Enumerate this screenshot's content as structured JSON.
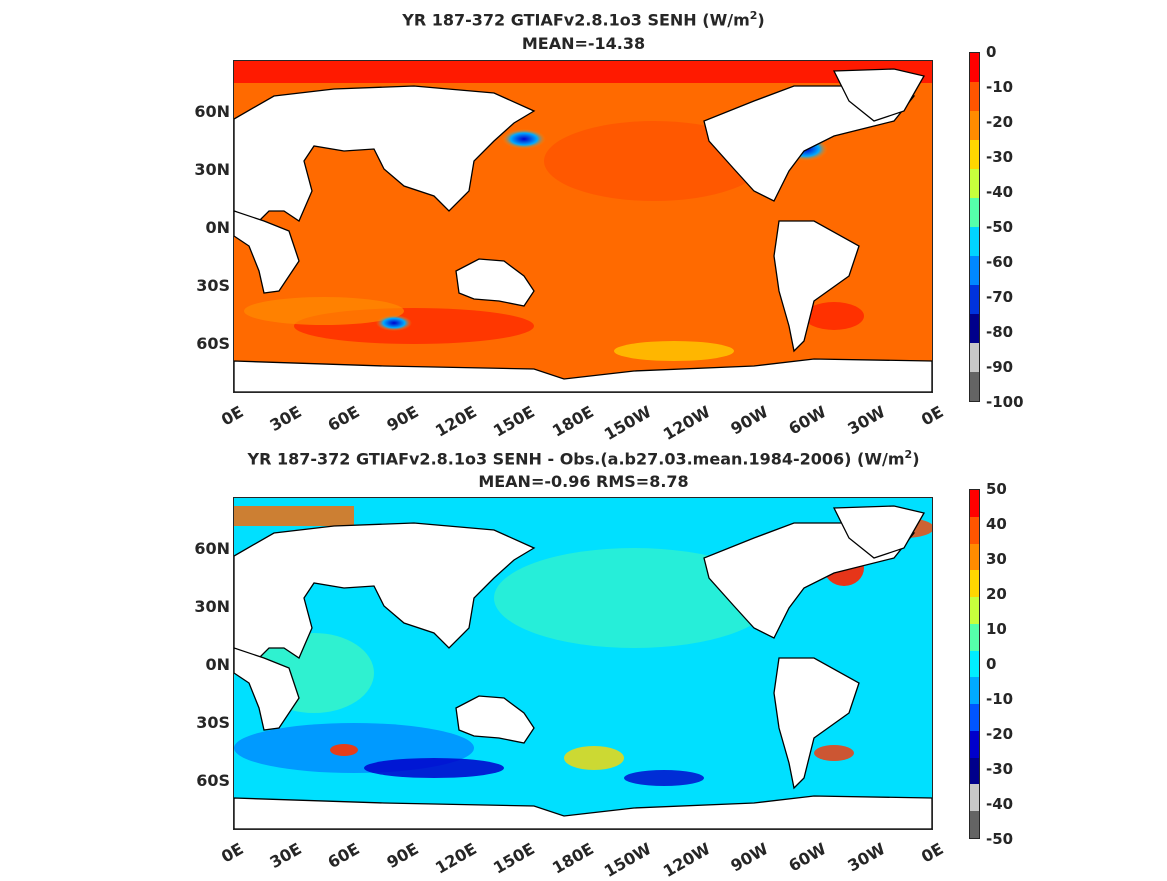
{
  "panel_top": {
    "title_prefix": "YR 187-372 GTIAFv2.8.1o3  SENH (W/m",
    "title_sup": "2",
    "title_suffix": ")",
    "subtitle": "MEAN=-14.38",
    "colorbar_labels": [
      "0",
      "-10",
      "-20",
      "-30",
      "-40",
      "-50",
      "-60",
      "-70",
      "-80",
      "-90",
      "-100"
    ],
    "colors": [
      "#ff0000",
      "#ff5500",
      "#ff8c00",
      "#ffd700",
      "#c8ff3c",
      "#55ffaa",
      "#00d4ff",
      "#0088ff",
      "#0033dd",
      "#00008b",
      "#c8c8c8",
      "#646464"
    ]
  },
  "panel_bottom": {
    "title_prefix": "YR 187-372 GTIAFv2.8.1o3 SENH - Obs.(a.b27.03.mean.1984-2006) (W/m",
    "title_sup": "2",
    "title_suffix": ")",
    "subtitle": "MEAN=-0.96 RMS=8.78",
    "colorbar_labels": [
      "50",
      "40",
      "30",
      "20",
      "10",
      "0",
      "-10",
      "-20",
      "-30",
      "-40",
      "-50"
    ],
    "colors": [
      "#ff0000",
      "#ff5500",
      "#ff8c00",
      "#ffd700",
      "#c8ff3c",
      "#55ffaa",
      "#00eeff",
      "#00aaff",
      "#0055ff",
      "#0000cc",
      "#00008b",
      "#c8c8c8",
      "#646464"
    ]
  },
  "lat_labels": [
    "60N",
    "30N",
    "0N",
    "30S",
    "60S"
  ],
  "lon_labels": [
    "0E",
    "30E",
    "60E",
    "90E",
    "120E",
    "150E",
    "180E",
    "150W",
    "120W",
    "90W",
    "60W",
    "30W",
    "0E"
  ]
}
